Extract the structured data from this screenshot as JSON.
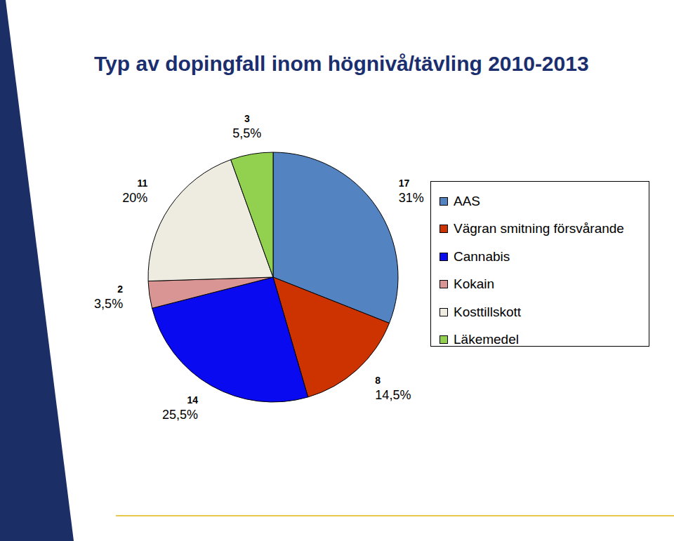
{
  "chart_data": {
    "type": "pie",
    "title": "Typ av dopingfall inom högnivå/tävling 2010-2013",
    "categories": [
      "AAS",
      "Vägran smitning försvårande",
      "Cannabis",
      "Kokain",
      "Kosttillskott",
      "Läkemedel"
    ],
    "values": [
      31,
      14.5,
      25.5,
      3.5,
      20,
      5.5
    ],
    "value_labels": [
      "31%",
      "14,5%",
      "25,5%",
      "3,5%",
      "20%",
      "5,5%"
    ],
    "counts": [
      17,
      8,
      14,
      2,
      11,
      3
    ],
    "colors": [
      "#5383c0",
      "#cc3300",
      "#0a0af0",
      "#d99594",
      "#eeebe0",
      "#92d050"
    ],
    "data_labels": true,
    "legend": "right"
  }
}
